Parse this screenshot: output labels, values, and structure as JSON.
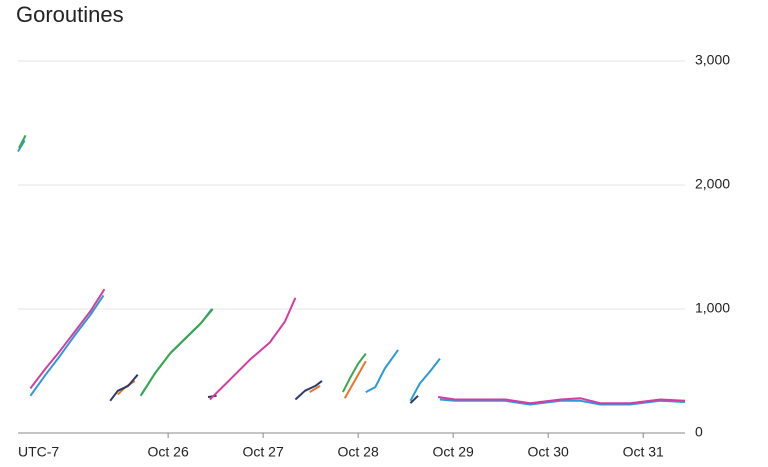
{
  "chart_data": {
    "type": "line",
    "title": "Goroutines",
    "timezone_label": "UTC-7",
    "xlim": [
      24.42,
      31.44
    ],
    "ylim": [
      0,
      3000
    ],
    "xticks": [
      {
        "value": 26,
        "label": "Oct 26"
      },
      {
        "value": 27,
        "label": "Oct 27"
      },
      {
        "value": 28,
        "label": "Oct 28"
      },
      {
        "value": 29,
        "label": "Oct 29"
      },
      {
        "value": 30,
        "label": "Oct 30"
      },
      {
        "value": 31,
        "label": "Oct 31"
      }
    ],
    "yticks": [
      0,
      {
        "value": 1000,
        "label": "1,000"
      },
      {
        "value": 2000,
        "label": "2,000"
      },
      {
        "value": 3000,
        "label": "3,000"
      }
    ],
    "grid": true,
    "series": [
      {
        "color": "#2c9ad8",
        "x": [
          24.42,
          24.49,
          null,
          24.55,
          24.71,
          24.86,
          25.02,
          25.18,
          25.32,
          null,
          25.71,
          25.86,
          26.02,
          26.18,
          26.34,
          26.46,
          null,
          28.08,
          28.18,
          28.28,
          28.42,
          null,
          28.55,
          28.65,
          28.76,
          28.86,
          null,
          28.86,
          29.02,
          29.28,
          29.55,
          29.81,
          30.13,
          30.34,
          30.55,
          30.86,
          31.18,
          31.44
        ],
        "values": [
          2270,
          2360,
          null,
          300,
          470,
          620,
          790,
          950,
          1110,
          null,
          300,
          480,
          640,
          760,
          880,
          1000,
          null,
          330,
          370,
          520,
          670,
          null,
          260,
          400,
          500,
          600,
          null,
          270,
          260,
          260,
          260,
          230,
          260,
          260,
          230,
          230,
          260,
          250
        ]
      },
      {
        "color": "#3aa84a",
        "x": [
          24.43,
          24.5,
          null,
          25.72,
          25.87,
          26.03,
          26.19,
          26.35,
          26.47,
          null,
          27.84,
          27.92,
          28.0,
          28.08
        ],
        "values": [
          2300,
          2400,
          null,
          310,
          490,
          650,
          770,
          890,
          1000,
          null,
          330,
          450,
          560,
          640
        ]
      },
      {
        "color": "#e8762b",
        "x": [
          25.47,
          25.55,
          25.65,
          null,
          27.49,
          27.6,
          null,
          27.86,
          27.97,
          28.08
        ],
        "values": [
          310,
          370,
          420,
          null,
          330,
          380,
          null,
          280,
          430,
          580
        ]
      },
      {
        "color": "#2b3a67",
        "x": [
          25.39,
          25.47,
          25.58,
          25.68,
          null,
          26.42,
          26.51,
          null,
          27.34,
          27.44,
          27.55,
          27.62,
          null,
          28.55,
          28.63
        ],
        "values": [
          260,
          340,
          380,
          470,
          null,
          290,
          300,
          null,
          270,
          340,
          380,
          420,
          null,
          240,
          300
        ]
      },
      {
        "color": "#d63ca0",
        "x": [
          24.55,
          24.71,
          24.86,
          25.02,
          25.18,
          25.33,
          null,
          26.44,
          26.65,
          26.86,
          27.07,
          27.23,
          27.34,
          null,
          28.84,
          29.02,
          29.28,
          29.55,
          29.81,
          30.13,
          30.34,
          30.55,
          30.86,
          31.18,
          31.44
        ],
        "values": [
          360,
          520,
          660,
          820,
          980,
          1160,
          null,
          270,
          430,
          590,
          730,
          900,
          1090,
          null,
          290,
          270,
          270,
          270,
          240,
          270,
          280,
          240,
          240,
          270,
          260
        ]
      }
    ]
  }
}
